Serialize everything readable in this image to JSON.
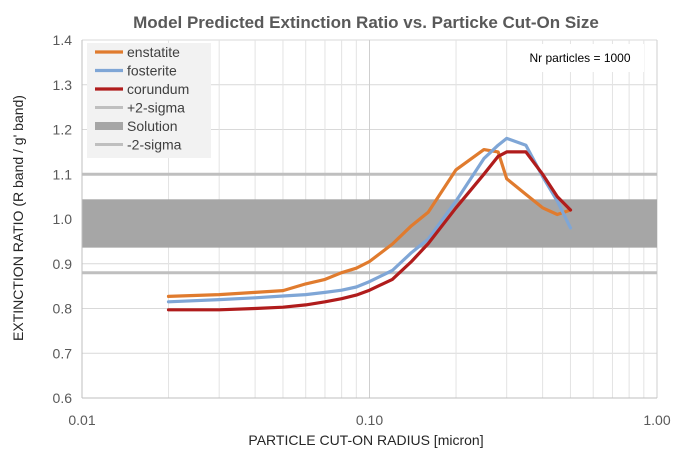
{
  "chart_data": {
    "type": "line",
    "title": "Model Predicted Extinction Ratio vs. Particke Cut-On Size",
    "xlabel": "PARTICLE CUT-ON RADIUS [micron]",
    "ylabel": "EXTINCTION RATIO (R band / g' band)",
    "x_scale": "log",
    "xlim": [
      0.01,
      1.0
    ],
    "ylim": [
      0.6,
      1.4
    ],
    "x_ticks": [
      0.01,
      0.1,
      1.0
    ],
    "x_tick_labels": [
      "0.01",
      "0.10",
      "1.00"
    ],
    "y_ticks": [
      0.6,
      0.7,
      0.8,
      0.9,
      1.0,
      1.1,
      1.2,
      1.3,
      1.4
    ],
    "y_tick_labels": [
      "0.6",
      "0.7",
      "0.8",
      "0.9",
      "1.0",
      "1.1",
      "1.2",
      "1.3",
      "1.4"
    ],
    "grid": true,
    "legend_position": "top-left",
    "annotation": "Nr particles = 1000",
    "series": [
      {
        "name": "enstatite",
        "color": "#e07b2e",
        "x": [
          0.02,
          0.03,
          0.04,
          0.05,
          0.06,
          0.07,
          0.08,
          0.09,
          0.1,
          0.12,
          0.14,
          0.16,
          0.2,
          0.25,
          0.28,
          0.3,
          0.35,
          0.4,
          0.45,
          0.5
        ],
        "y": [
          0.827,
          0.831,
          0.836,
          0.84,
          0.855,
          0.865,
          0.88,
          0.89,
          0.905,
          0.944,
          0.985,
          1.015,
          1.11,
          1.155,
          1.15,
          1.09,
          1.055,
          1.025,
          1.01,
          1.02
        ]
      },
      {
        "name": "fosterite",
        "color": "#7fa6d6",
        "x": [
          0.02,
          0.03,
          0.04,
          0.05,
          0.06,
          0.07,
          0.08,
          0.09,
          0.1,
          0.12,
          0.14,
          0.16,
          0.2,
          0.25,
          0.28,
          0.3,
          0.35,
          0.4,
          0.45,
          0.5
        ],
        "y": [
          0.815,
          0.82,
          0.824,
          0.828,
          0.831,
          0.836,
          0.841,
          0.848,
          0.86,
          0.885,
          0.925,
          0.955,
          1.04,
          1.135,
          1.165,
          1.18,
          1.165,
          1.095,
          1.04,
          0.98
        ]
      },
      {
        "name": "corundum",
        "color": "#b01c1c",
        "x": [
          0.02,
          0.03,
          0.04,
          0.05,
          0.06,
          0.07,
          0.08,
          0.09,
          0.1,
          0.12,
          0.14,
          0.16,
          0.2,
          0.25,
          0.28,
          0.3,
          0.35,
          0.4,
          0.45,
          0.5
        ],
        "y": [
          0.797,
          0.797,
          0.8,
          0.803,
          0.808,
          0.815,
          0.822,
          0.83,
          0.841,
          0.865,
          0.905,
          0.945,
          1.025,
          1.1,
          1.14,
          1.15,
          1.15,
          1.1,
          1.05,
          1.02
        ]
      }
    ],
    "bands": [
      {
        "name": "+2-sigma",
        "color": "#bfbfbf",
        "y": 1.1
      },
      {
        "name": "Solution",
        "color": "#a6a6a6",
        "y_from": 0.936,
        "y_to": 1.044
      },
      {
        "name": "-2-sigma",
        "color": "#bfbfbf",
        "y": 0.88
      }
    ]
  }
}
